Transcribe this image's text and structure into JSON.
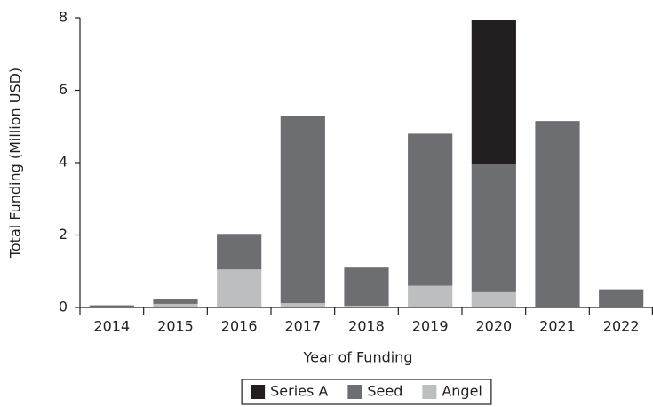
{
  "chart_data": {
    "type": "stacked_bar",
    "x_label": "Year of Funding",
    "y_label": "Total Funding (Million USD)",
    "categories": [
      "2014",
      "2015",
      "2016",
      "2017",
      "2018",
      "2019",
      "2020",
      "2021",
      "2022"
    ],
    "series": [
      {
        "name": "Series A",
        "color": "#231f20",
        "values": [
          0,
          0,
          0,
          0,
          0,
          0,
          4.0,
          0,
          0
        ]
      },
      {
        "name": "Seed",
        "color": "#6d6e71",
        "values": [
          0.05,
          0.12,
          0.98,
          5.18,
          1.05,
          4.2,
          3.53,
          5.15,
          0.5
        ]
      },
      {
        "name": "Angel",
        "color": "#bcbec0",
        "values": [
          0.01,
          0.1,
          1.05,
          0.12,
          0.05,
          0.6,
          0.42,
          0,
          0
        ]
      }
    ],
    "ylim": [
      0,
      8
    ],
    "yticks": [
      0,
      2,
      4,
      6,
      8
    ],
    "legend": "bottom"
  }
}
